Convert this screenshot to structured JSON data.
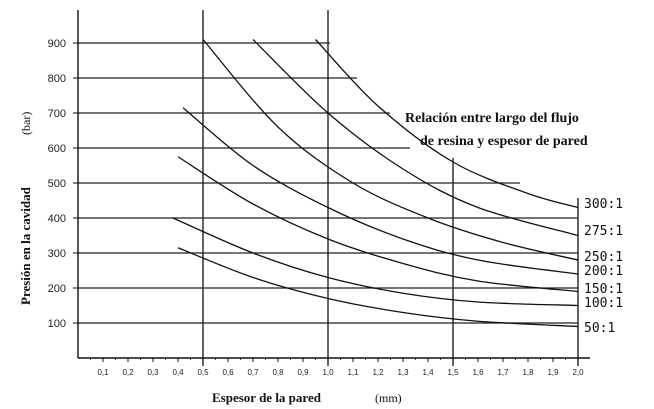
{
  "chart_data": {
    "type": "line",
    "xlabel": "Espesor de la pared",
    "xunit": "(mm)",
    "ylabel": "Presión en la cavidad",
    "yunit": "(bar)",
    "annotation": [
      "Relación entre largo del flujo",
      "de resina y espesor de pared"
    ],
    "x_ticks": [
      "0,1",
      "0,2",
      "0,3",
      "0,4",
      "0,5",
      "0,6",
      "0,7",
      "0,8",
      "0,9",
      "1,0",
      "1,1",
      "1,2",
      "1,3",
      "1,4",
      "1,5",
      "1,6",
      "1,7",
      "1,8",
      "1,9",
      "2,0"
    ],
    "y_ticks": [
      "100",
      "200",
      "300",
      "400",
      "500",
      "600",
      "700",
      "800",
      "900"
    ],
    "xlim": [
      0,
      2.0
    ],
    "ylim": [
      0,
      950
    ],
    "grid": "partial horizontal lines; vertical lines at 0.5, 1.0, 1.5, 2.0",
    "series": [
      {
        "name": "300:1",
        "x": [
          0.95,
          1.2,
          1.5,
          1.8,
          2.0
        ],
        "y": [
          910,
          720,
          560,
          470,
          430
        ]
      },
      {
        "name": "275:1",
        "x": [
          0.7,
          1.0,
          1.3,
          1.6,
          2.0
        ],
        "y": [
          910,
          700,
          540,
          430,
          350
        ]
      },
      {
        "name": "250:1",
        "x": [
          0.5,
          0.8,
          1.1,
          1.4,
          1.7,
          2.0
        ],
        "y": [
          910,
          660,
          500,
          400,
          330,
          280
        ]
      },
      {
        "name": "200:1",
        "x": [
          0.42,
          0.7,
          1.0,
          1.3,
          1.6,
          2.0
        ],
        "y": [
          715,
          550,
          430,
          340,
          280,
          240
        ]
      },
      {
        "name": "150:1",
        "x": [
          0.4,
          0.7,
          1.0,
          1.3,
          1.6,
          2.0
        ],
        "y": [
          575,
          440,
          340,
          270,
          220,
          190
        ]
      },
      {
        "name": "100:1",
        "x": [
          0.38,
          0.7,
          1.0,
          1.3,
          1.6,
          2.0
        ],
        "y": [
          400,
          300,
          230,
          185,
          160,
          150
        ]
      },
      {
        "name": "50:1",
        "x": [
          0.4,
          0.7,
          1.0,
          1.3,
          1.6,
          2.0
        ],
        "y": [
          315,
          230,
          170,
          130,
          105,
          90
        ]
      }
    ]
  }
}
